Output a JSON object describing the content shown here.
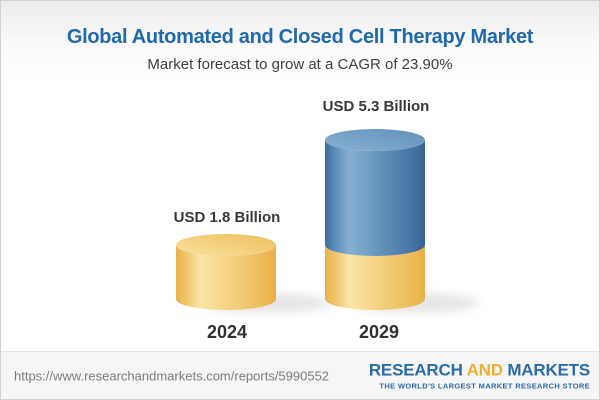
{
  "header": {
    "title": "Global Automated and Closed Cell Therapy Market",
    "subtitle": "Market forecast to grow at a CAGR of 23.90%"
  },
  "chart_data": {
    "type": "bar",
    "variant": "stacked-3d-cylinder",
    "categories": [
      "2024",
      "2029"
    ],
    "unit": "USD Billion",
    "totals": [
      1.8,
      5.3
    ],
    "bar_labels": [
      "USD 1.8 Billion",
      "USD 5.3 Billion"
    ],
    "series": [
      {
        "color_key": "yellow",
        "color": "#f3cd74",
        "values": [
          1.8,
          1.8
        ]
      },
      {
        "color_key": "blue",
        "color": "#4e80ae",
        "values": [
          0,
          3.5
        ]
      }
    ],
    "cagr_percent": 23.9,
    "ylim": [
      0,
      5.8
    ],
    "gridlines": false,
    "axes_hidden": true,
    "legend": "none"
  },
  "footer": {
    "url": "https://www.researchandmarkets.com/reports/5990552",
    "logo": {
      "research": "RESEARCH",
      "and": "AND",
      "markets": "MARKETS",
      "tagline": "THE WORLD'S LARGEST MARKET RESEARCH STORE"
    }
  },
  "colors": {
    "title_blue": "#2069ac",
    "text_dark": "#3e3e3e",
    "label_dark": "#383838",
    "bar_yellow": "#f3cd74",
    "bar_blue": "#4e80ae",
    "logo_blue": "#2a6ba8",
    "logo_gold": "#efae2e",
    "url_gray": "#7b7b7b",
    "footer_bg": "#f6f6f6"
  }
}
